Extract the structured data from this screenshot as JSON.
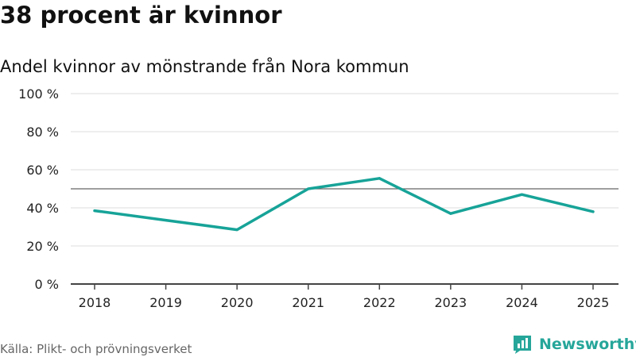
{
  "header": {
    "title": "38 procent är kvinnor",
    "subtitle": "Andel kvinnor av mönstrande från Nora kommun"
  },
  "chart_data": {
    "type": "line",
    "categories": [
      "2018",
      "2019",
      "2020",
      "2021",
      "2022",
      "2023",
      "2024",
      "2025"
    ],
    "series": [
      {
        "name": "Andel kvinnor",
        "values": [
          38.5,
          33.5,
          28.5,
          50,
          55.5,
          37,
          47,
          38
        ]
      }
    ],
    "reference_line": 50,
    "ylim": [
      0,
      100
    ],
    "yticks": [
      0,
      20,
      40,
      60,
      80,
      100
    ],
    "ytick_labels": [
      "0 %",
      "20 %",
      "40 %",
      "60 %",
      "80 %",
      "100 %"
    ],
    "grid": true,
    "xlabel": "",
    "ylabel": ""
  },
  "footer": {
    "source": "Källa: Plikt- och prövningsverket",
    "brand": "Newsworthy"
  },
  "colors": {
    "line": "#17a398",
    "grid": "#dddddd",
    "reference": "#666666",
    "axis": "#444444",
    "brand": "#26a69a"
  }
}
